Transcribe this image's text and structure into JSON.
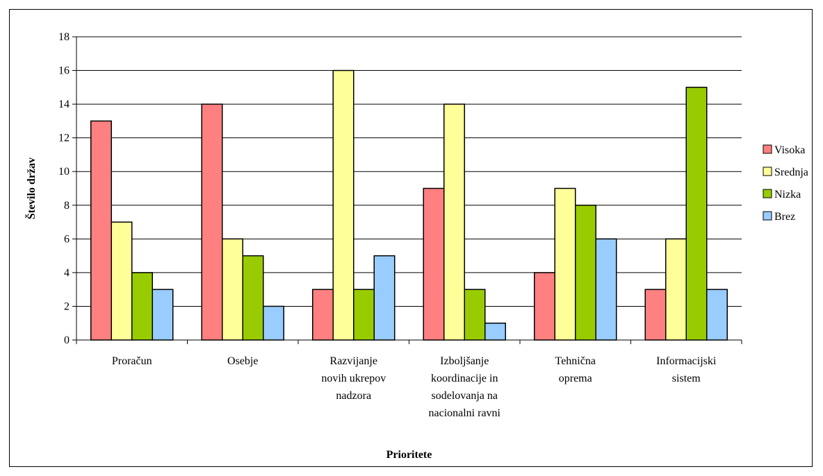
{
  "chart_data": {
    "type": "bar",
    "xlabel": "Prioritete",
    "ylabel": "Število držav",
    "ylim": [
      0,
      18
    ],
    "yticks": [
      0,
      2,
      4,
      6,
      8,
      10,
      12,
      14,
      16,
      18
    ],
    "grid": true,
    "legend_position": "right",
    "categories": [
      [
        "Proračun"
      ],
      [
        "Osebje"
      ],
      [
        "Razvijanje",
        "novih ukrepov",
        "nadzora"
      ],
      [
        "Izboljšanje",
        "koordinacije in",
        "sodelovanja na",
        "nacionalni ravni"
      ],
      [
        "Tehnična",
        "oprema"
      ],
      [
        "Informacijski",
        "sistem"
      ]
    ],
    "series": [
      {
        "name": "Visoka",
        "color": "#ff8080",
        "values": [
          13,
          14,
          3,
          9,
          4,
          3
        ]
      },
      {
        "name": "Srednja",
        "color": "#ffff99",
        "values": [
          7,
          6,
          16,
          14,
          9,
          6
        ]
      },
      {
        "name": "Nizka",
        "color": "#99cc00",
        "values": [
          4,
          5,
          3,
          3,
          8,
          15
        ]
      },
      {
        "name": "Brez",
        "color": "#99ccff",
        "values": [
          3,
          2,
          5,
          1,
          6,
          3
        ]
      }
    ]
  }
}
